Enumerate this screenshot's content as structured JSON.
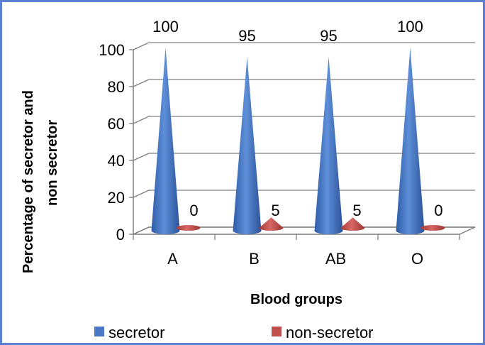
{
  "chart_data": {
    "type": "bar",
    "subtype": "3d-cone",
    "categories": [
      "A",
      "B",
      "AB",
      "O"
    ],
    "series": [
      {
        "name": "secretor",
        "values": [
          100,
          95,
          95,
          100
        ],
        "color": "#4a78c4"
      },
      {
        "name": "non-secretor",
        "values": [
          0,
          5,
          5,
          0
        ],
        "color": "#c0504d"
      }
    ],
    "data_labels": {
      "secretor": [
        "100",
        "95",
        "95",
        "100"
      ],
      "non-secretor": [
        "0",
        "5",
        "5",
        "0"
      ]
    },
    "title": "",
    "xlabel": "Blood groups",
    "ylabel_line1": "Percentage of secretor and",
    "ylabel_line2": "non secretor",
    "ylim": [
      0,
      100
    ],
    "yticks": [
      0,
      20,
      40,
      60,
      80,
      100
    ],
    "grid": true,
    "legend_position": "bottom"
  }
}
